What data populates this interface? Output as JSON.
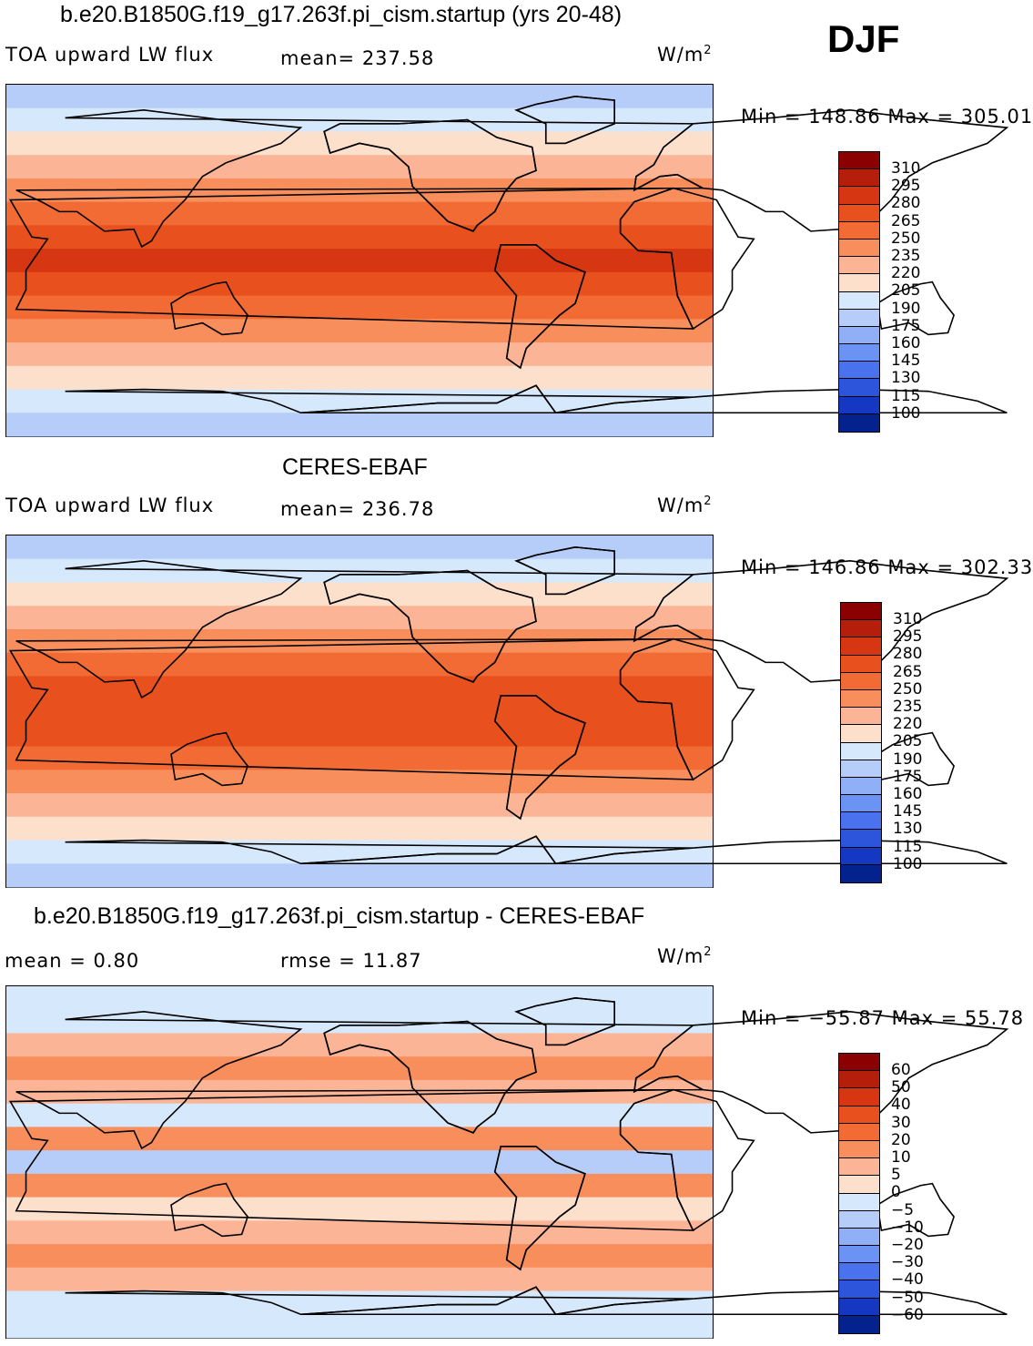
{
  "season": "DJF",
  "chart_data": [
    {
      "type": "heatmap",
      "title": "b.e20.B1850G.f19_g17.263f.pi_cism.startup (yrs 20-48)",
      "left_label": "TOA upward LW flux",
      "center_label": "mean=  237.58",
      "units_base": "W/m",
      "units_exp": "2",
      "min_max": "Min  =  148.86  Max  =  305.01",
      "levels": [
        "310",
        "295",
        "280",
        "265",
        "250",
        "235",
        "220",
        "205",
        "190",
        "175",
        "160",
        "145",
        "130",
        "115",
        "100"
      ],
      "palette": [
        "#8b0000",
        "#b51e0a",
        "#d63612",
        "#e8501e",
        "#f26a34",
        "#f88e5c",
        "#fbb596",
        "#fde0cc",
        "#d6e8fb",
        "#b5cdf8",
        "#8fb0f6",
        "#6b93f3",
        "#4b72ee",
        "#2d55dc",
        "#1538c2",
        "#03228e"
      ],
      "zonal_profile": [
        175,
        190,
        205,
        220,
        235,
        250,
        265,
        280,
        265,
        250,
        235,
        220,
        205,
        190,
        175
      ]
    },
    {
      "type": "heatmap",
      "title": "CERES-EBAF",
      "left_label": "TOA upward LW flux",
      "center_label": "mean=  236.78",
      "units_base": "W/m",
      "units_exp": "2",
      "min_max": "Min  =  146.86  Max  =  302.33",
      "levels": [
        "310",
        "295",
        "280",
        "265",
        "250",
        "235",
        "220",
        "205",
        "190",
        "175",
        "160",
        "145",
        "130",
        "115",
        "100"
      ],
      "palette": [
        "#8b0000",
        "#b51e0a",
        "#d63612",
        "#e8501e",
        "#f26a34",
        "#f88e5c",
        "#fbb596",
        "#fde0cc",
        "#d6e8fb",
        "#b5cdf8",
        "#8fb0f6",
        "#6b93f3",
        "#4b72ee",
        "#2d55dc",
        "#1538c2",
        "#03228e"
      ],
      "zonal_profile": [
        175,
        190,
        205,
        220,
        235,
        250,
        265,
        265,
        265,
        250,
        235,
        220,
        205,
        190,
        175
      ]
    },
    {
      "type": "heatmap",
      "title": "b.e20.B1850G.f19_g17.263f.pi_cism.startup - CERES-EBAF",
      "left_label": "mean  =     0.80",
      "center_label": "rmse  =    11.87",
      "units_base": "W/m",
      "units_exp": "2",
      "min_max": "Min  =  −55.87  Max  =    55.78",
      "levels": [
        "60",
        "50",
        "40",
        "30",
        "20",
        "10",
        "5",
        "0",
        "−5",
        "−10",
        "−20",
        "−30",
        "−40",
        "−50",
        "−60"
      ],
      "palette": [
        "#8b0000",
        "#b51e0a",
        "#d63612",
        "#e8501e",
        "#f26a34",
        "#f88e5c",
        "#fbb596",
        "#fde0cc",
        "#d6e8fb",
        "#b5cdf8",
        "#8fb0f6",
        "#6b93f3",
        "#4b72ee",
        "#2d55dc",
        "#1538c2",
        "#03228e"
      ],
      "zonal_profile": [
        -5,
        -5,
        5,
        10,
        5,
        -5,
        10,
        -10,
        10,
        0,
        5,
        10,
        5,
        -5,
        -5
      ]
    }
  ]
}
